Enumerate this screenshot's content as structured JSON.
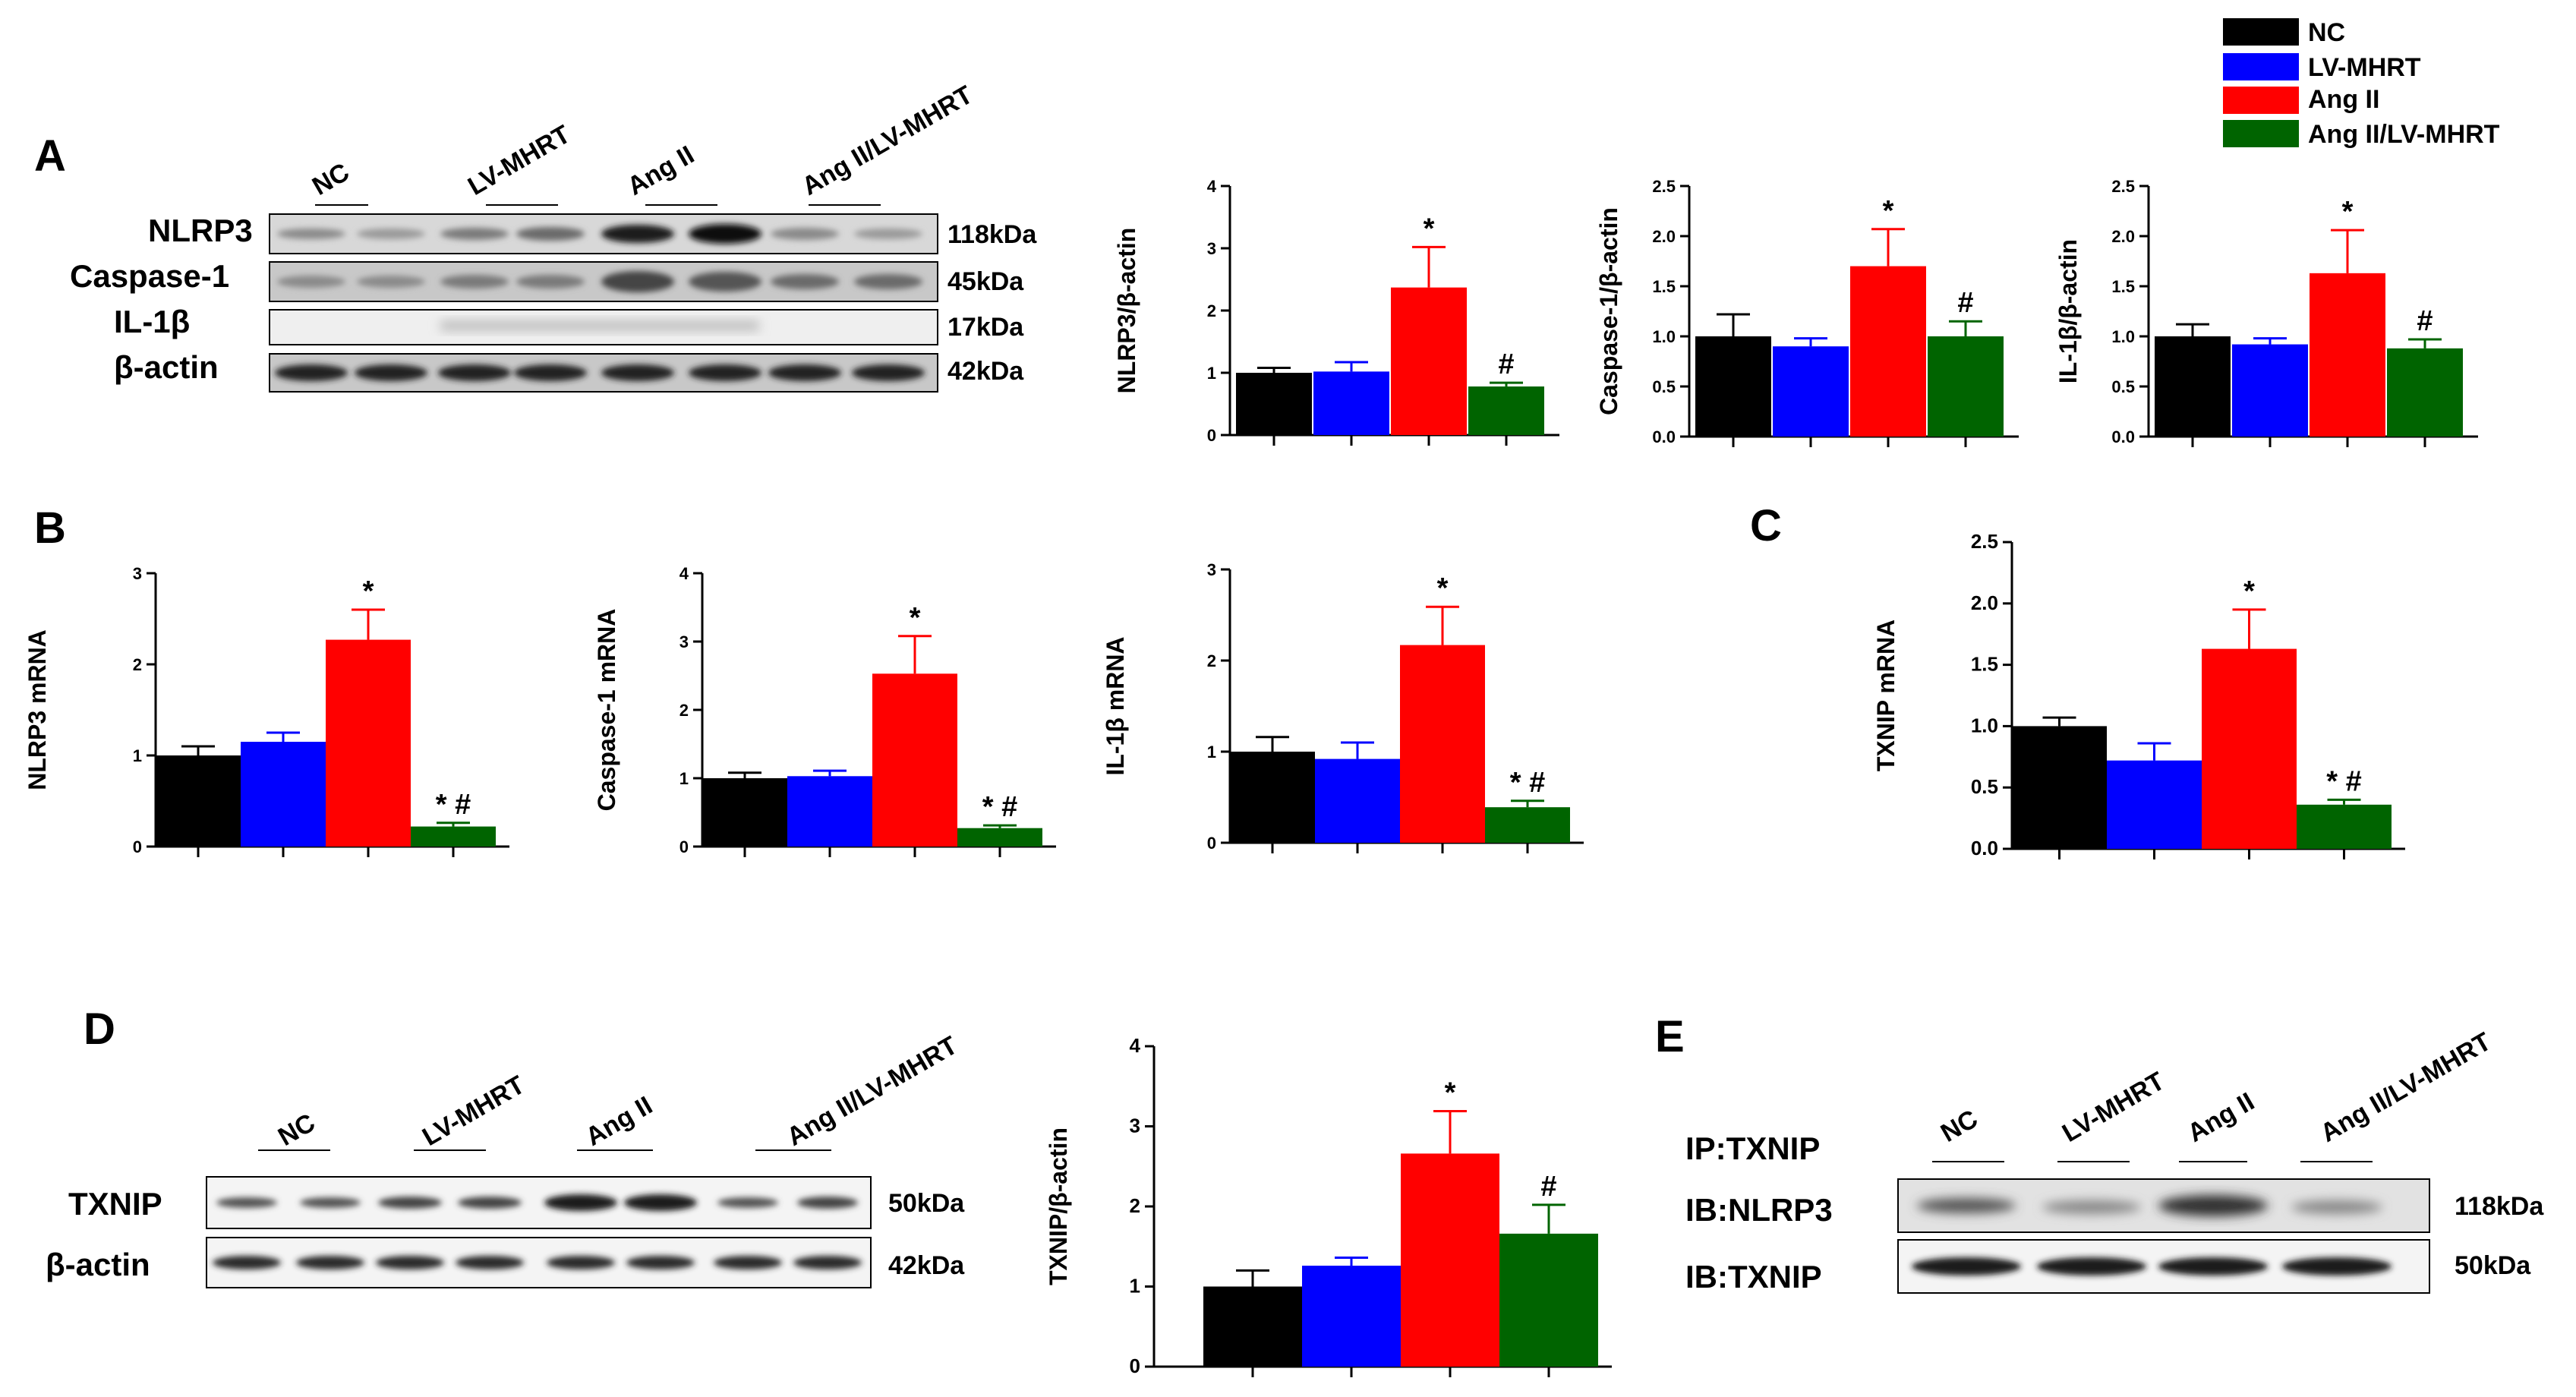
{
  "panels": {
    "A": "A",
    "B": "B",
    "C": "C",
    "D": "D",
    "E": "E"
  },
  "colors": {
    "NC": "#000000",
    "LV-MHRT": "#0000FF",
    "Ang II": "#FF0000",
    "Ang II/LV-MHRT": "#006400"
  },
  "legend": [
    "NC",
    "LV-MHRT",
    "Ang II",
    "Ang II/LV-MHRT"
  ],
  "blots": {
    "A": {
      "lanes": [
        "NC",
        "LV-MHRT",
        "Ang II",
        "Ang II/LV-MHRT"
      ],
      "rows": [
        {
          "label": "NLRP3",
          "kda": "118kDa"
        },
        {
          "label": "Caspase-1",
          "kda": "45kDa"
        },
        {
          "label": "IL-1β",
          "kda": "17kDa"
        },
        {
          "label": "β-actin",
          "kda": "42kDa"
        }
      ]
    },
    "D": {
      "lanes": [
        "NC",
        "LV-MHRT",
        "Ang II",
        "Ang II/LV-MHRT"
      ],
      "rows": [
        {
          "label": "TXNIP",
          "kda": "50kDa"
        },
        {
          "label": "β-actin",
          "kda": "42kDa"
        }
      ]
    },
    "E": {
      "header": "IP:TXNIP",
      "lanes": [
        "NC",
        "LV-MHRT",
        "Ang II",
        "Ang II/LV-MHRT"
      ],
      "rows": [
        {
          "label": "IB:NLRP3",
          "kda": "118kDa"
        },
        {
          "label": "IB:TXNIP",
          "kda": "50kDa"
        }
      ]
    }
  },
  "chart_data": [
    {
      "id": "A1",
      "type": "bar",
      "categories": [
        "NC",
        "LV-MHRT",
        "Ang II",
        "Ang II/LV-MHRT"
      ],
      "values": [
        1.0,
        1.02,
        2.37,
        0.78
      ],
      "errors": [
        0.08,
        0.15,
        0.65,
        0.06
      ],
      "annotations": [
        "",
        "",
        "*",
        "#"
      ],
      "ylabel": "NLRP3/β-actin",
      "ylim": [
        0,
        4
      ],
      "ticks": [
        "0",
        "1",
        "2",
        "3",
        "4"
      ]
    },
    {
      "id": "A2",
      "type": "bar",
      "categories": [
        "NC",
        "LV-MHRT",
        "Ang II",
        "Ang II/LV-MHRT"
      ],
      "values": [
        1.0,
        0.9,
        1.7,
        1.0
      ],
      "errors": [
        0.22,
        0.08,
        0.37,
        0.15
      ],
      "annotations": [
        "",
        "",
        "*",
        "#"
      ],
      "ylabel": "Caspase-1/β-actin",
      "ylim": [
        0,
        2.5
      ],
      "ticks": [
        "0.0",
        "0.5",
        "1.0",
        "1.5",
        "2.0",
        "2.5"
      ]
    },
    {
      "id": "A3",
      "type": "bar",
      "categories": [
        "NC",
        "LV-MHRT",
        "Ang II",
        "Ang II/LV-MHRT"
      ],
      "values": [
        1.0,
        0.92,
        1.63,
        0.88
      ],
      "errors": [
        0.12,
        0.06,
        0.43,
        0.09
      ],
      "annotations": [
        "",
        "",
        "*",
        "#"
      ],
      "ylabel": "IL-1β/β-actin",
      "ylim": [
        0,
        2.5
      ],
      "ticks": [
        "0.0",
        "0.5",
        "1.0",
        "1.5",
        "2.0",
        "2.5"
      ]
    },
    {
      "id": "B1",
      "type": "bar",
      "categories": [
        "NC",
        "LV-MHRT",
        "Ang II",
        "Ang II/LV-MHRT"
      ],
      "values": [
        1.0,
        1.15,
        2.27,
        0.22
      ],
      "errors": [
        0.1,
        0.1,
        0.33,
        0.04
      ],
      "annotations": [
        "",
        "",
        "*",
        "* #"
      ],
      "ylabel": "NLRP3 mRNA",
      "ylim": [
        0,
        3
      ],
      "ticks": [
        "0",
        "1",
        "2",
        "3"
      ]
    },
    {
      "id": "B2",
      "type": "bar",
      "categories": [
        "NC",
        "LV-MHRT",
        "Ang II",
        "Ang II/LV-MHRT"
      ],
      "values": [
        1.0,
        1.03,
        2.53,
        0.27
      ],
      "errors": [
        0.08,
        0.08,
        0.55,
        0.04
      ],
      "annotations": [
        "",
        "",
        "*",
        "* #"
      ],
      "ylabel": "Caspase-1 mRNA",
      "ylim": [
        0,
        4
      ],
      "ticks": [
        "0",
        "1",
        "2",
        "3",
        "4"
      ]
    },
    {
      "id": "B3",
      "type": "bar",
      "categories": [
        "NC",
        "LV-MHRT",
        "Ang II",
        "Ang II/LV-MHRT"
      ],
      "values": [
        1.0,
        0.92,
        2.17,
        0.39
      ],
      "errors": [
        0.16,
        0.18,
        0.42,
        0.07
      ],
      "annotations": [
        "",
        "",
        "*",
        "* #"
      ],
      "ylabel": "IL-1β mRNA",
      "ylim": [
        0,
        3
      ],
      "ticks": [
        "0",
        "1",
        "2",
        "3"
      ]
    },
    {
      "id": "C1",
      "type": "bar",
      "categories": [
        "NC",
        "LV-MHRT",
        "Ang II",
        "Ang II/LV-MHRT"
      ],
      "values": [
        1.0,
        0.72,
        1.63,
        0.36
      ],
      "errors": [
        0.07,
        0.14,
        0.32,
        0.04
      ],
      "annotations": [
        "",
        "",
        "*",
        "* #"
      ],
      "ylabel": "TXNIP mRNA",
      "ylim": [
        0,
        2.5
      ],
      "ticks": [
        "0.0",
        "0.5",
        "1.0",
        "1.5",
        "2.0",
        "2.5"
      ]
    },
    {
      "id": "D1",
      "type": "bar",
      "categories": [
        "NC",
        "LV-MHRT",
        "Ang II",
        "Ang II/LV-MHRT"
      ],
      "values": [
        1.0,
        1.26,
        2.66,
        1.66
      ],
      "errors": [
        0.2,
        0.1,
        0.53,
        0.36
      ],
      "annotations": [
        "",
        "",
        "*",
        "#"
      ],
      "ylabel": "TXNIP/β-actin",
      "ylim": [
        0,
        4
      ],
      "ticks": [
        "0",
        "1",
        "2",
        "3",
        "4"
      ]
    }
  ]
}
